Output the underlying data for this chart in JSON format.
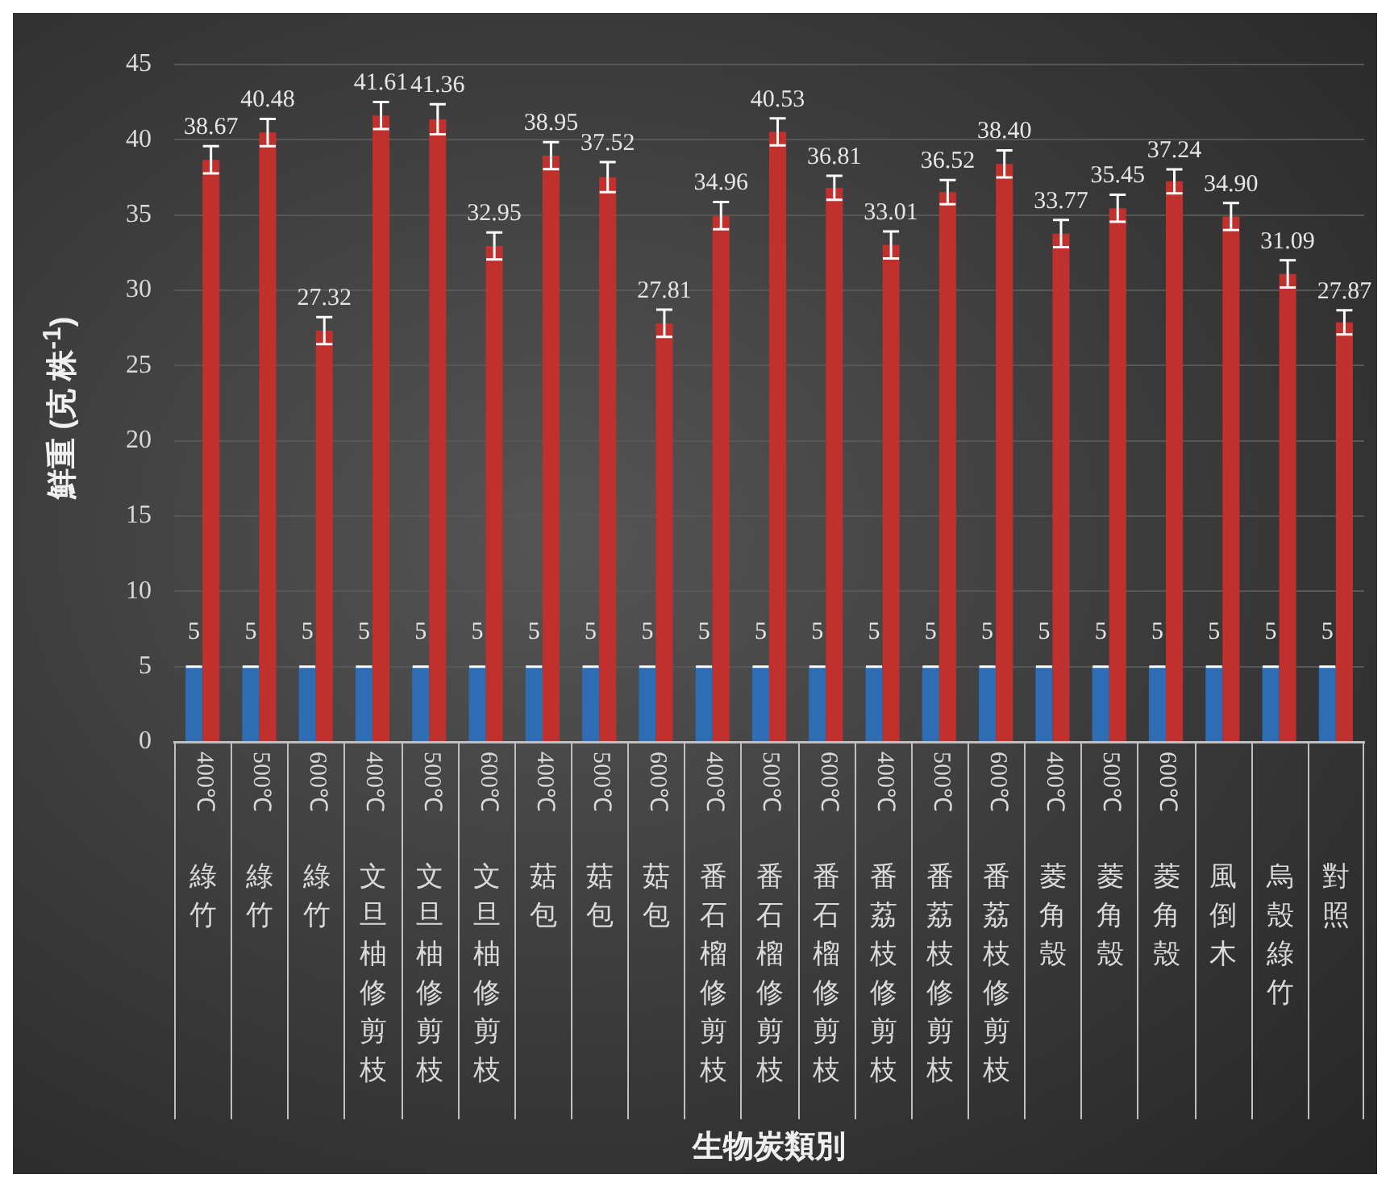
{
  "chart_data": {
    "type": "bar",
    "xlabel": "生物炭類別",
    "ylabel": "鮮重 (克 株$^{-1}$)",
    "categories": [
      "400℃ 綠竹",
      "500℃ 綠竹",
      "600℃ 綠竹",
      "400℃ 文旦柚修剪枝",
      "500℃ 文旦柚修剪枝",
      "600℃ 文旦柚修剪枝",
      "400℃ 菇包",
      "500℃ 菇包",
      "600℃ 菇包",
      "400℃ 番石榴修剪枝",
      "500℃ 番石榴修剪枝",
      "600℃ 番石榴修剪枝",
      "400℃ 番荔枝修剪枝",
      "500℃ 番荔枝修剪枝",
      "600℃ 番荔枝修剪枝",
      "400℃ 菱角殼",
      "500℃ 菱角殼",
      "600℃ 菱角殼",
      "風倒木",
      "烏殼綠竹",
      "對照"
    ],
    "series": [
      {
        "color": "#2e6db4",
        "values": [
          5,
          5,
          5,
          5,
          5,
          5,
          5,
          5,
          5,
          5,
          5,
          5,
          5,
          5,
          5,
          5,
          5,
          5,
          5,
          5,
          5
        ],
        "errors": [
          0,
          0,
          0,
          0,
          0,
          0,
          0,
          0,
          0,
          0,
          0,
          0,
          0,
          0,
          0,
          0,
          0,
          0,
          0,
          0,
          0
        ],
        "value_labels": [
          "5",
          "5",
          "5",
          "5",
          "5",
          "5",
          "5",
          "5",
          "5",
          "5",
          "5",
          "5",
          "5",
          "5",
          "5",
          "5",
          "5",
          "5",
          "5",
          "5",
          "5"
        ]
      },
      {
        "color": "#c0302c",
        "values": [
          38.67,
          40.48,
          27.32,
          41.61,
          41.36,
          32.95,
          38.95,
          37.52,
          27.81,
          34.96,
          40.53,
          36.81,
          33.01,
          36.52,
          38.4,
          33.77,
          35.45,
          37.24,
          34.9,
          31.09,
          27.87
        ],
        "errors": [
          0.9,
          0.9,
          0.9,
          0.9,
          1.0,
          0.9,
          0.9,
          1.0,
          0.9,
          0.9,
          0.9,
          0.8,
          0.9,
          0.8,
          0.9,
          0.9,
          0.9,
          0.8,
          0.9,
          0.9,
          0.8
        ],
        "value_labels": [
          "38.67",
          "40.48",
          "27.32",
          "41.61",
          "41.36",
          "32.95",
          "38.95",
          "37.52",
          "27.81",
          "34.96",
          "40.53",
          "36.81",
          "33.01",
          "36.52",
          "38.40",
          "33.77",
          "35.45",
          "37.24",
          "34.90",
          "31.09",
          "27.87"
        ]
      }
    ],
    "ylim": [
      0,
      45
    ],
    "yticks": [
      0,
      5,
      10,
      15,
      20,
      25,
      30,
      35,
      40,
      45
    ],
    "grid": "y",
    "legend": false
  }
}
